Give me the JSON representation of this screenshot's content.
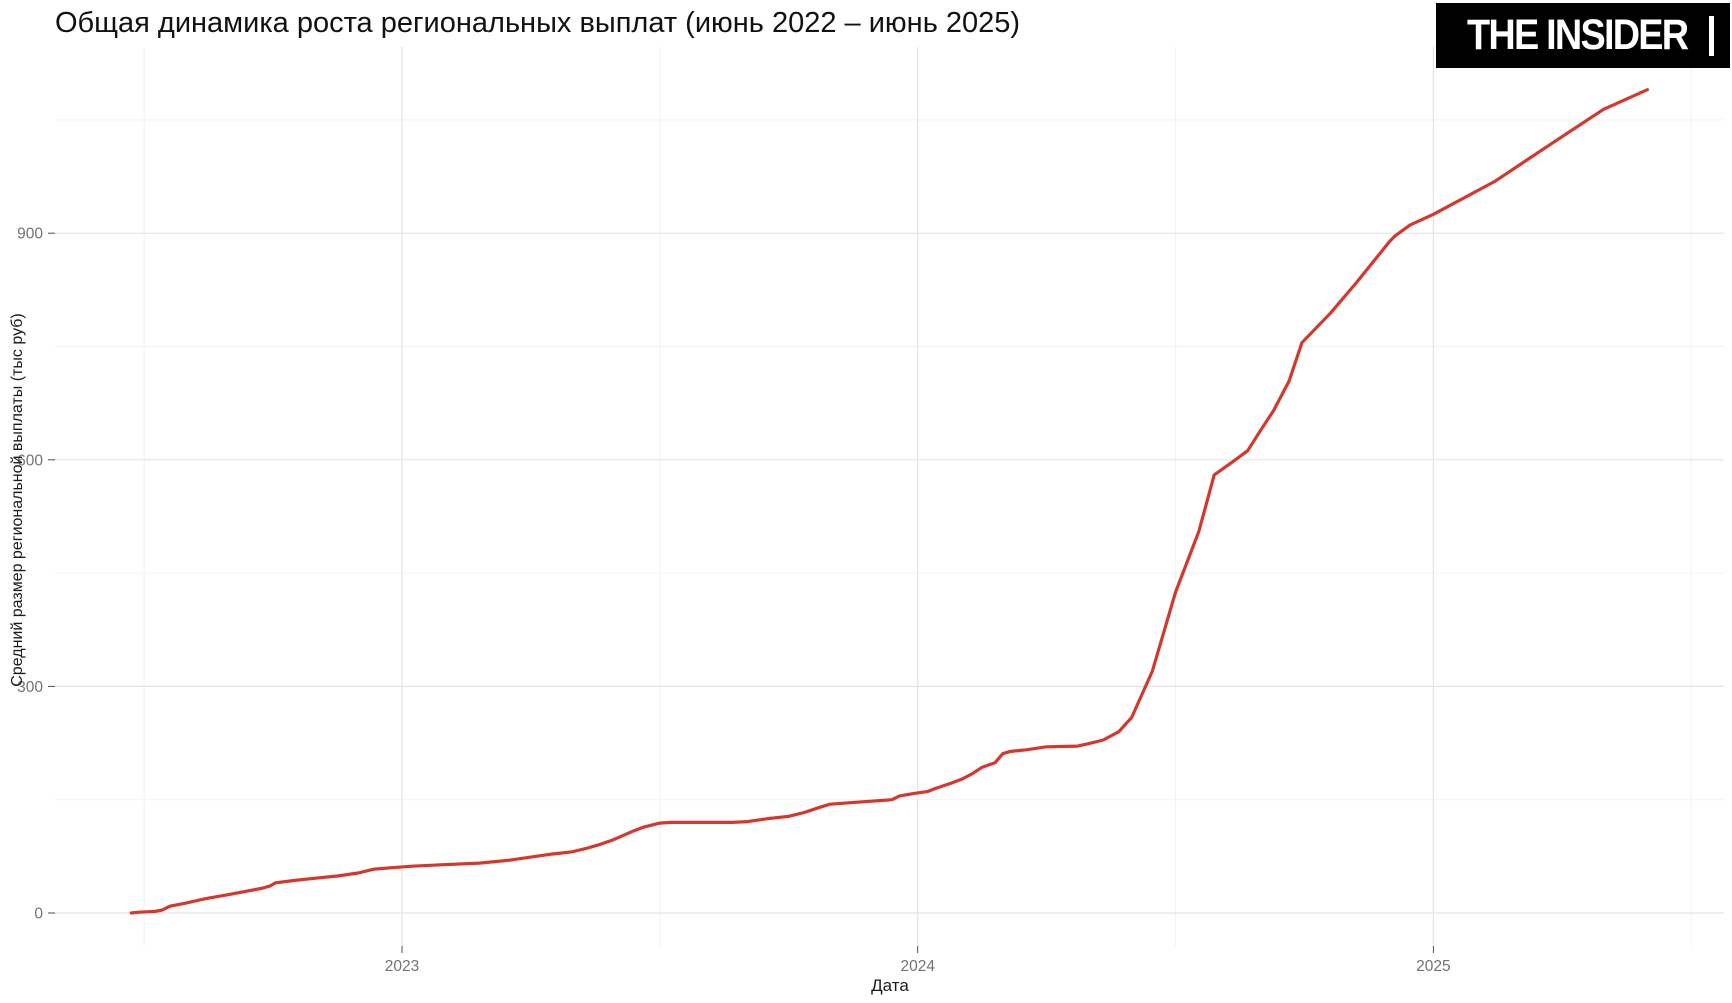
{
  "header": {
    "title": "Общая динамика роста региональных выплат (июнь 2022 – июнь 2025)",
    "logo_text": "THE INSIDER"
  },
  "colors": {
    "background": "#ffffff",
    "line": "#d5372e",
    "grid_major": "#e4e4e4",
    "grid_minor": "#f2f2f2",
    "tick_mark": "#4d4d4d",
    "tick_label": "#737373",
    "axis_title": "#1a1a1a",
    "logo_bg": "#000000",
    "logo_text": "#ffffff"
  },
  "chart_data": {
    "type": "line",
    "title": "Общая динамика роста региональных выплат (июнь 2022 – июнь 2025)",
    "xlabel": "Дата",
    "ylabel": "Средний размер региональной выплаты (тыс руб)",
    "x_unit": "decimal_year",
    "xlim": [
      2022.41,
      2025.56
    ],
    "ylim": [
      -44,
      1134
    ],
    "grid": "major_and_minor",
    "legend_position": "none",
    "x_ticks": [
      {
        "t": 2023,
        "label": "2023"
      },
      {
        "t": 2024,
        "label": "2024"
      },
      {
        "t": 2025,
        "label": "2025"
      }
    ],
    "x_minor_breaks": [
      2022.5,
      2023.5,
      2024.5,
      2025.5
    ],
    "y_ticks": [
      {
        "v": 0,
        "label": "0"
      },
      {
        "v": 300,
        "label": "300"
      },
      {
        "v": 600,
        "label": "600"
      },
      {
        "v": 900,
        "label": "900"
      }
    ],
    "y_minor_breaks": [
      150,
      450,
      750,
      1050
    ],
    "series": [
      {
        "name": "Средний размер региональной выплаты (тыс руб)",
        "color": "#d5372e",
        "points": [
          [
            2022.475,
            0
          ],
          [
            2022.49,
            1
          ],
          [
            2022.52,
            2
          ],
          [
            2022.535,
            4
          ],
          [
            2022.55,
            9
          ],
          [
            2022.58,
            13
          ],
          [
            2022.62,
            19
          ],
          [
            2022.66,
            24
          ],
          [
            2022.7,
            29
          ],
          [
            2022.73,
            33
          ],
          [
            2022.745,
            36
          ],
          [
            2022.755,
            40
          ],
          [
            2022.79,
            43
          ],
          [
            2022.83,
            46
          ],
          [
            2022.875,
            49
          ],
          [
            2022.915,
            53
          ],
          [
            2022.945,
            58
          ],
          [
            2022.98,
            60
          ],
          [
            2023.02,
            62
          ],
          [
            2023.08,
            64
          ],
          [
            2023.15,
            66
          ],
          [
            2023.21,
            70
          ],
          [
            2023.25,
            74
          ],
          [
            2023.29,
            78
          ],
          [
            2023.33,
            81
          ],
          [
            2023.36,
            86
          ],
          [
            2023.385,
            91
          ],
          [
            2023.41,
            97
          ],
          [
            2023.43,
            103
          ],
          [
            2023.45,
            109
          ],
          [
            2023.47,
            114
          ],
          [
            2023.5,
            119
          ],
          [
            2023.52,
            120
          ],
          [
            2023.64,
            120
          ],
          [
            2023.67,
            121
          ],
          [
            2023.71,
            125
          ],
          [
            2023.75,
            128
          ],
          [
            2023.78,
            133
          ],
          [
            2023.81,
            140
          ],
          [
            2023.83,
            144
          ],
          [
            2023.87,
            146
          ],
          [
            2023.91,
            148
          ],
          [
            2023.95,
            150
          ],
          [
            2023.965,
            155
          ],
          [
            2023.99,
            158
          ],
          [
            2024.02,
            161
          ],
          [
            2024.035,
            165
          ],
          [
            2024.065,
            172
          ],
          [
            2024.085,
            177
          ],
          [
            2024.105,
            184
          ],
          [
            2024.125,
            193
          ],
          [
            2024.15,
            199
          ],
          [
            2024.165,
            211
          ],
          [
            2024.18,
            214
          ],
          [
            2024.21,
            216
          ],
          [
            2024.25,
            220
          ],
          [
            2024.31,
            221
          ],
          [
            2024.33,
            224
          ],
          [
            2024.36,
            229
          ],
          [
            2024.39,
            240
          ],
          [
            2024.415,
            259
          ],
          [
            2024.455,
            320
          ],
          [
            2024.5,
            425
          ],
          [
            2024.545,
            505
          ],
          [
            2024.575,
            580
          ],
          [
            2024.61,
            597
          ],
          [
            2024.64,
            612
          ],
          [
            2024.665,
            639
          ],
          [
            2024.69,
            665
          ],
          [
            2024.72,
            704
          ],
          [
            2024.745,
            755
          ],
          [
            2024.8,
            794
          ],
          [
            2024.85,
            834
          ],
          [
            2024.915,
            889
          ],
          [
            2024.925,
            896
          ],
          [
            2024.955,
            911
          ],
          [
            2025.0,
            925
          ],
          [
            2025.12,
            969
          ],
          [
            2025.23,
            1019
          ],
          [
            2025.33,
            1064
          ],
          [
            2025.415,
            1090
          ]
        ]
      }
    ]
  }
}
